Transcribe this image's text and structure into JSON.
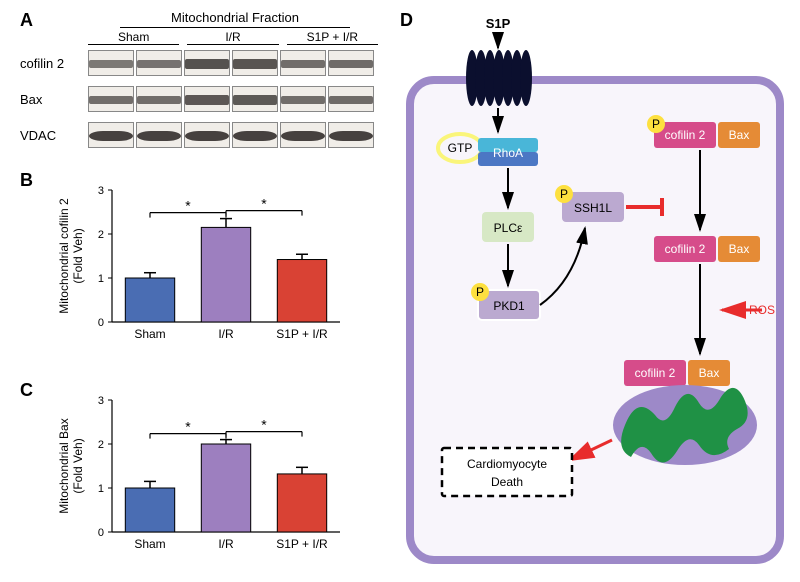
{
  "panelA": {
    "label": "A",
    "title": "Mitochondrial Fraction",
    "conditions": [
      "Sham",
      "I/R",
      "S1P + I/R"
    ],
    "rows": [
      "cofilin 2",
      "Bax",
      "VDAC"
    ],
    "lane_count": 6,
    "band_intensities": {
      "cofilin_2": [
        0.4,
        0.45,
        0.75,
        0.72,
        0.5,
        0.52
      ],
      "Bax": [
        0.5,
        0.5,
        0.7,
        0.68,
        0.5,
        0.52
      ],
      "VDAC": [
        0.9,
        0.9,
        0.9,
        0.9,
        0.9,
        0.9
      ]
    },
    "colors": {
      "lane_bg": "#f0ede8",
      "band": "#3a3634"
    }
  },
  "panelB": {
    "label": "B",
    "ytitle_1": "Mitochondrial cofilin 2",
    "ytitle_2": "(Fold Veh)",
    "ylim": [
      0,
      3
    ],
    "ytick_step": 1,
    "categories": [
      "Sham",
      "I/R",
      "S1P + I/R"
    ],
    "values": [
      1.0,
      2.15,
      1.42
    ],
    "errors": [
      0.12,
      0.2,
      0.12
    ],
    "bar_colors": [
      "#4a6db3",
      "#9d7fbf",
      "#d94234"
    ],
    "sig": [
      [
        0,
        1,
        "*"
      ],
      [
        1,
        2,
        "*"
      ]
    ]
  },
  "panelC": {
    "label": "C",
    "ytitle_1": "Mitochondrial Bax",
    "ytitle_2": "(Fold Veh)",
    "ylim": [
      0,
      3
    ],
    "ytick_step": 1,
    "categories": [
      "Sham",
      "I/R",
      "S1P + I/R"
    ],
    "values": [
      1.0,
      2.0,
      1.32
    ],
    "errors": [
      0.15,
      0.1,
      0.15
    ],
    "bar_colors": [
      "#4a6db3",
      "#9d7fbf",
      "#d94234"
    ],
    "sig": [
      [
        0,
        1,
        "*"
      ],
      [
        1,
        2,
        "*"
      ]
    ]
  },
  "panelD": {
    "label": "D",
    "s1p_label": "S1P",
    "gtp": "GTP",
    "rhoa": "RhoA",
    "plce": "PLCε",
    "pkd1": "PKD1",
    "ssh1l": "SSH1L",
    "cofilin2": "cofilin 2",
    "bax": "Bax",
    "ros": "ROS",
    "death": "Cardiomyocyte\nDeath",
    "p": "P",
    "colors": {
      "cell_fill": "#f8f5fb",
      "cell_border": "#9d89c8",
      "s1p": "#0b0f2e",
      "gtp_circle": "#faf57a",
      "rhoa_top": "#49b6d8",
      "rhoa_bot": "#4c77c4",
      "plce": "#d7e8c5",
      "pkd": "#bba9d0",
      "ssh1l": "#bba9d0",
      "cofilin": "#d64c8a",
      "bax": "#e58b36",
      "p_circle": "#fde03f",
      "ros_red": "#e82c2c",
      "mito": "#1f9145",
      "dashbox": "#000000"
    }
  }
}
